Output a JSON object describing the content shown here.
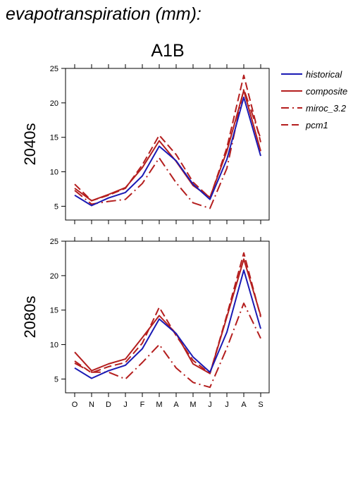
{
  "title": "evapotranspiration (mm):",
  "scenario": "A1B",
  "colors": {
    "historical": "#1a1ab4",
    "model": "#b41e1e"
  },
  "chart_data": [
    {
      "type": "line",
      "panel_label": "2040s",
      "categories": [
        "O",
        "N",
        "D",
        "J",
        "F",
        "M",
        "A",
        "M",
        "J",
        "J",
        "A",
        "S"
      ],
      "ylim": [
        3,
        25
      ],
      "yticks": [
        5,
        10,
        15,
        20,
        25
      ],
      "series": [
        {
          "name": "historical",
          "style": "solid-blue",
          "values": [
            6.6,
            5.1,
            6.2,
            7.0,
            9.4,
            13.7,
            11.6,
            8.2,
            6.0,
            11.8,
            20.8,
            12.3
          ]
        },
        {
          "name": "composite",
          "style": "solid-red",
          "values": [
            7.6,
            5.8,
            6.7,
            7.7,
            10.6,
            14.5,
            11.5,
            8.0,
            6.3,
            13.0,
            21.8,
            13.0
          ]
        },
        {
          "name": "miroc_3.2",
          "style": "dashdot-red",
          "values": [
            7.3,
            5.3,
            5.7,
            6.0,
            8.3,
            12.0,
            8.4,
            5.5,
            4.7,
            10.5,
            22.0,
            14.8
          ]
        },
        {
          "name": "pcm1",
          "style": "dashed-red",
          "values": [
            8.2,
            5.8,
            6.6,
            7.6,
            11.0,
            15.3,
            12.5,
            8.5,
            6.2,
            13.5,
            24.0,
            14.3
          ]
        }
      ]
    },
    {
      "type": "line",
      "panel_label": "2080s",
      "categories": [
        "O",
        "N",
        "D",
        "J",
        "F",
        "M",
        "A",
        "M",
        "J",
        "J",
        "A",
        "S"
      ],
      "ylim": [
        3,
        25
      ],
      "yticks": [
        5,
        10,
        15,
        20,
        25
      ],
      "series": [
        {
          "name": "historical",
          "style": "solid-blue",
          "values": [
            6.6,
            5.1,
            6.2,
            7.0,
            9.4,
            13.7,
            11.6,
            8.2,
            6.0,
            11.8,
            20.8,
            12.3
          ]
        },
        {
          "name": "composite",
          "style": "solid-red",
          "values": [
            8.9,
            6.2,
            7.2,
            7.9,
            11.0,
            14.2,
            11.6,
            7.2,
            5.8,
            14.0,
            22.4,
            14.2
          ]
        },
        {
          "name": "miroc_3.2",
          "style": "dashdot-red",
          "values": [
            7.3,
            6.0,
            6.0,
            5.0,
            7.4,
            10.0,
            6.6,
            4.5,
            3.8,
            9.5,
            16.0,
            10.9
          ]
        },
        {
          "name": "pcm1",
          "style": "dashed-red",
          "values": [
            7.6,
            5.9,
            6.8,
            7.4,
            10.2,
            15.4,
            11.3,
            7.7,
            5.8,
            14.3,
            23.3,
            14.0
          ]
        }
      ]
    }
  ],
  "legend": [
    {
      "label": "historical",
      "style": "solid-blue"
    },
    {
      "label": "composite",
      "style": "solid-red"
    },
    {
      "label": "miroc_3.2",
      "style": "dashdot-red"
    },
    {
      "label": "pcm1",
      "style": "dashed-red"
    }
  ]
}
